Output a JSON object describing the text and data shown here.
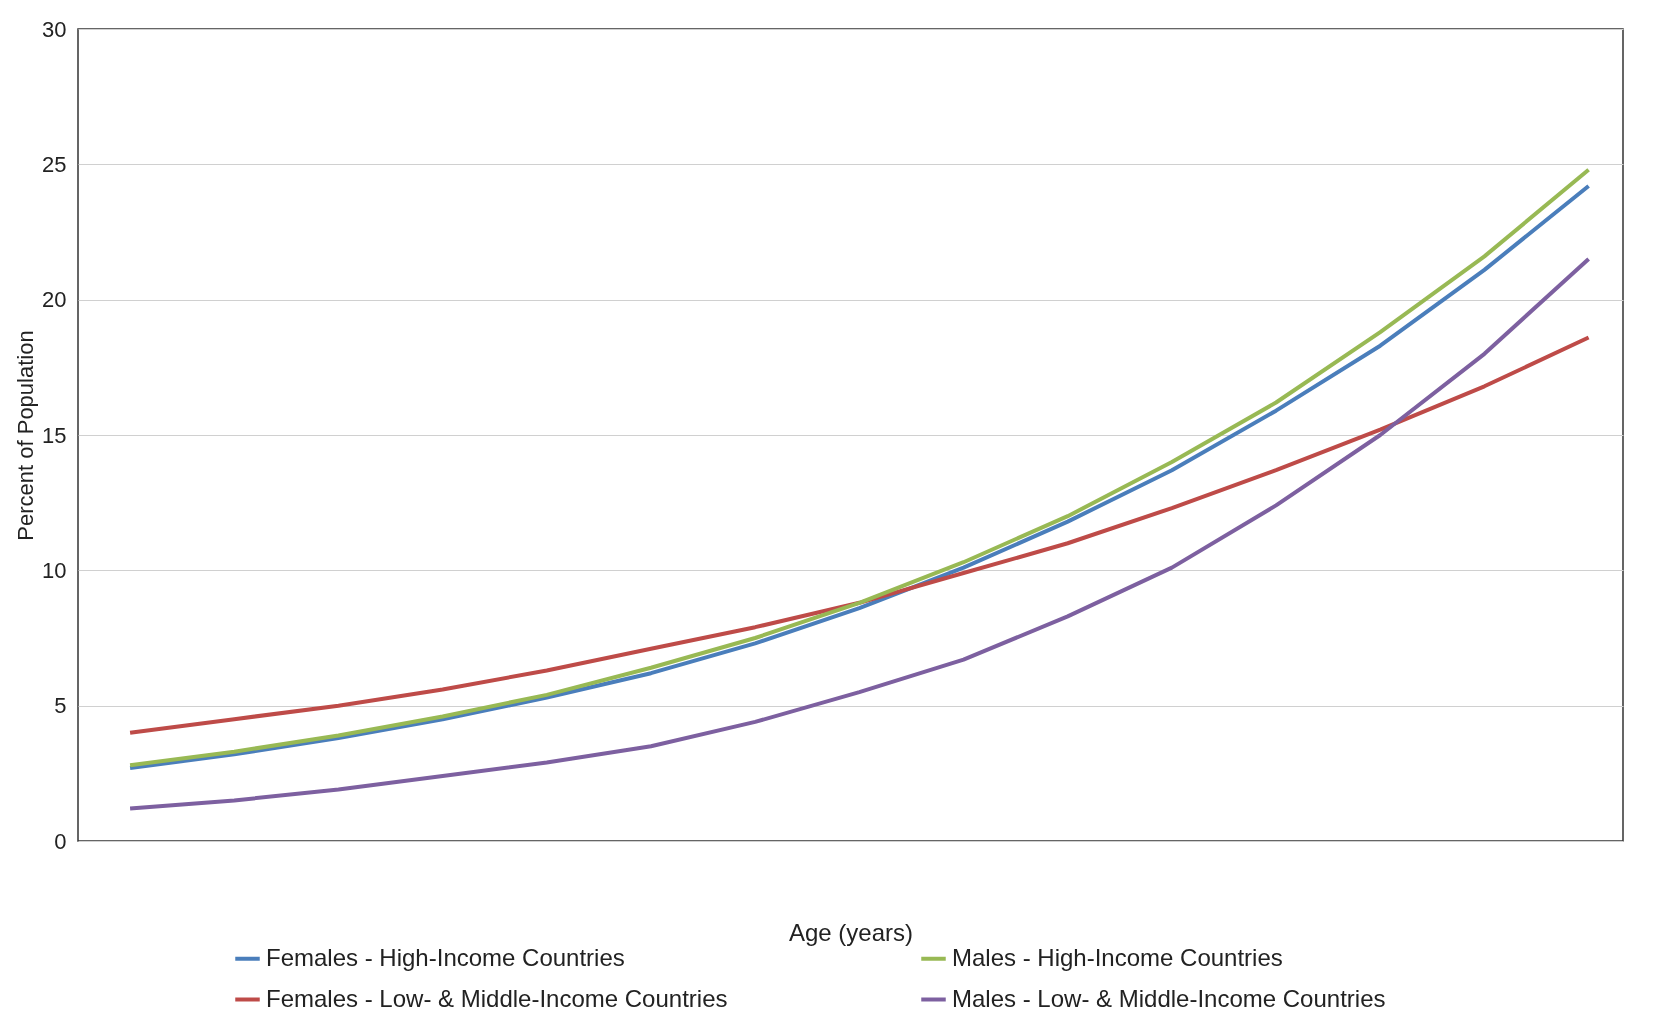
{
  "chart_data": {
    "type": "line",
    "xlabel": "Age (years)",
    "ylabel": "Percent of Population",
    "categories": [
      null,
      null,
      null,
      null,
      null,
      null,
      null,
      null,
      null,
      null,
      null,
      null,
      null,
      null,
      null
    ],
    "series": [
      {
        "name": "Females - High-Income Countries",
        "color": "#4a7ebb",
        "values": [
          2.7,
          3.2,
          3.8,
          4.5,
          5.3,
          6.2,
          7.3,
          8.6,
          10.1,
          11.8,
          13.7,
          15.9,
          18.3,
          21.1,
          24.2
        ]
      },
      {
        "name": "Females - Low- & Middle-Income Countries",
        "color": "#be4b48",
        "values": [
          4.0,
          4.5,
          5.0,
          5.6,
          6.3,
          7.1,
          7.9,
          8.8,
          9.9,
          11.0,
          12.3,
          13.7,
          15.2,
          16.8,
          18.6
        ]
      },
      {
        "name": "Males - High-Income Countries",
        "color": "#98b954",
        "values": [
          2.8,
          3.3,
          3.9,
          4.6,
          5.4,
          6.4,
          7.5,
          8.8,
          10.3,
          12.0,
          14.0,
          16.2,
          18.8,
          21.6,
          24.8
        ]
      },
      {
        "name": "Males - Low- & Middle-Income Countries",
        "color": "#7d60a0",
        "values": [
          1.2,
          1.5,
          1.9,
          2.4,
          2.9,
          3.5,
          4.4,
          5.5,
          6.7,
          8.3,
          10.1,
          12.4,
          15.0,
          18.0,
          21.5
        ]
      }
    ],
    "ylim": [
      0,
      30
    ],
    "yticks": [
      0,
      5,
      10,
      15,
      20,
      25,
      30
    ],
    "grid": "y",
    "legend": "bottom",
    "tick_labels": "y",
    "marker": "none",
    "line_style": "solid"
  }
}
